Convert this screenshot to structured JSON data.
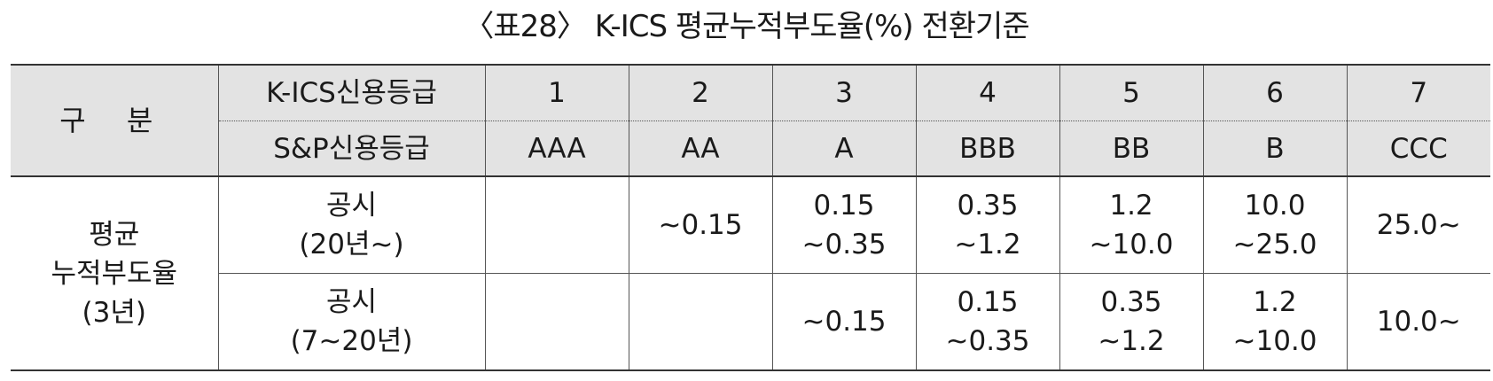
{
  "title": "〈표28〉 K-ICS 평균누적부도율(%) 전환기준",
  "header": {
    "section": "구 분",
    "row1_label": "K-ICS신용등급",
    "row2_label": "S&P신용등급",
    "kics_grades": [
      "1",
      "2",
      "3",
      "4",
      "5",
      "6",
      "7"
    ],
    "sp_grades": [
      "AAA",
      "AA",
      "A",
      "BBB",
      "BB",
      "B",
      "CCC"
    ]
  },
  "body": {
    "row_head": [
      "평균",
      "누적부도율",
      "(3년)"
    ],
    "rows": [
      {
        "label": [
          "공시",
          "(20년~)"
        ],
        "cells": [
          [],
          [
            "~0.15"
          ],
          [
            "0.15",
            "~0.35"
          ],
          [
            "0.35",
            "~1.2"
          ],
          [
            "1.2",
            "~10.0"
          ],
          [
            "10.0",
            "~25.0"
          ],
          [
            "25.0~"
          ]
        ]
      },
      {
        "label": [
          "공시",
          "(7~20년)"
        ],
        "cells": [
          [],
          [],
          [
            "~0.15"
          ],
          [
            "0.15",
            "~0.35"
          ],
          [
            "0.35",
            "~1.2"
          ],
          [
            "1.2",
            "~10.0"
          ],
          [
            "10.0~"
          ]
        ]
      }
    ]
  }
}
